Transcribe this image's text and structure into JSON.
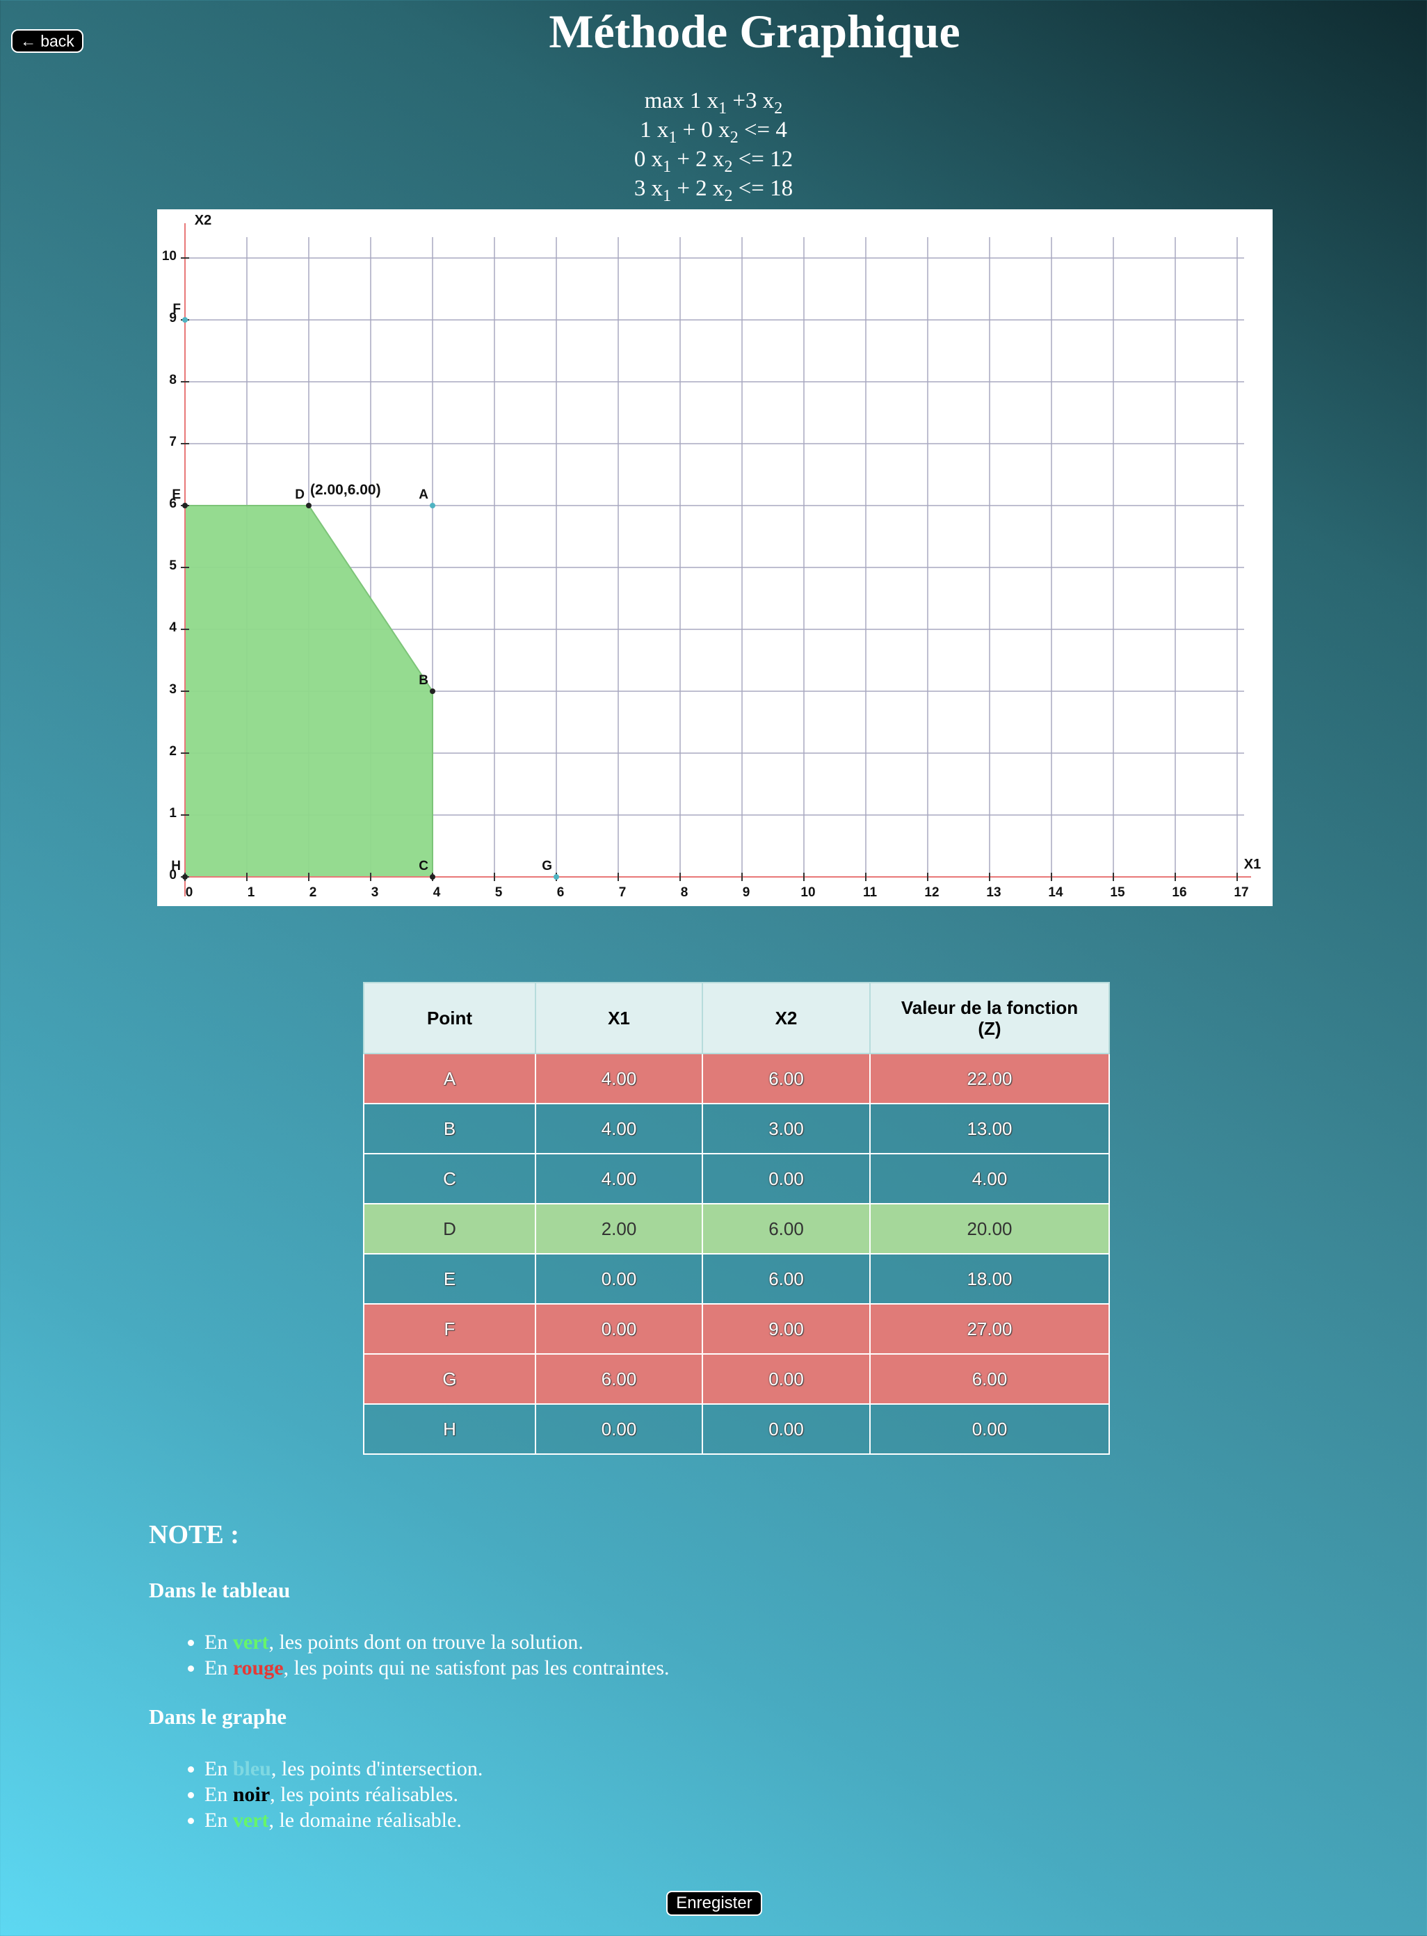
{
  "header": {
    "back_label": "back",
    "title": "Méthode Graphique"
  },
  "problem": {
    "objective": [
      "max 1 x",
      "1",
      " +3 x",
      "2",
      ""
    ],
    "constraints": [
      [
        "1 x",
        "1",
        " + 0 x",
        "2",
        " <= 4"
      ],
      [
        "0 x",
        "1",
        " + 2 x",
        "2",
        " <= 12"
      ],
      [
        "3 x",
        "1",
        " + 2 x",
        "2",
        " <= 18"
      ]
    ]
  },
  "colors": {
    "feasible_region": "#8fd98a",
    "intersection_point": "#4fb3c2",
    "axis": "#e87878",
    "grid": "#a8a8c0",
    "infeasible_row": "#e07b78",
    "optimal_row": "#a5d79a"
  },
  "chart_data": {
    "type": "scatter",
    "xlabel": "X1",
    "ylabel": "X2",
    "xlim": [
      0,
      17
    ],
    "ylim": [
      0,
      10
    ],
    "x_ticks": [
      "0",
      "1",
      "2",
      "3",
      "4",
      "5",
      "6",
      "7",
      "8",
      "9",
      "10",
      "11",
      "12",
      "13",
      "14",
      "15",
      "16",
      "17"
    ],
    "y_ticks": [
      "0",
      "1",
      "2",
      "3",
      "4",
      "5",
      "6",
      "7",
      "8",
      "9",
      "10"
    ],
    "grid": true,
    "feasible_region": [
      [
        0,
        0
      ],
      [
        4,
        0
      ],
      [
        4,
        3
      ],
      [
        2,
        6
      ],
      [
        0,
        6
      ]
    ],
    "points": [
      {
        "label": "A",
        "x": 4,
        "y": 6
      },
      {
        "label": "B",
        "x": 4,
        "y": 3
      },
      {
        "label": "C",
        "x": 4,
        "y": 0
      },
      {
        "label": "D",
        "x": 2,
        "y": 6
      },
      {
        "label": "E",
        "x": 0,
        "y": 6
      },
      {
        "label": "F",
        "x": 0,
        "y": 9
      },
      {
        "label": "G",
        "x": 6,
        "y": 0
      },
      {
        "label": "H",
        "x": 0,
        "y": 0
      }
    ],
    "annotation": {
      "text": "(2.00,6.00)",
      "x": 2,
      "y": 6
    }
  },
  "table": {
    "headers": [
      "Point",
      "X1",
      "X2",
      "Valeur de la fonction (Z)"
    ],
    "rows": [
      {
        "point": "A",
        "x1": "4.00",
        "x2": "6.00",
        "z": "22.00",
        "status": "infeasible"
      },
      {
        "point": "B",
        "x1": "4.00",
        "x2": "3.00",
        "z": "13.00",
        "status": "normal"
      },
      {
        "point": "C",
        "x1": "4.00",
        "x2": "0.00",
        "z": "4.00",
        "status": "normal"
      },
      {
        "point": "D",
        "x1": "2.00",
        "x2": "6.00",
        "z": "20.00",
        "status": "optimal"
      },
      {
        "point": "E",
        "x1": "0.00",
        "x2": "6.00",
        "z": "18.00",
        "status": "normal"
      },
      {
        "point": "F",
        "x1": "0.00",
        "x2": "9.00",
        "z": "27.00",
        "status": "infeasible"
      },
      {
        "point": "G",
        "x1": "6.00",
        "x2": "0.00",
        "z": "6.00",
        "status": "infeasible"
      },
      {
        "point": "H",
        "x1": "0.00",
        "x2": "0.00",
        "z": "0.00",
        "status": "normal"
      }
    ]
  },
  "note": {
    "title": "NOTE :",
    "table_section": {
      "heading": "Dans le tableau",
      "items": [
        {
          "prefix": "En ",
          "keyword": "vert",
          "suffix": ", les points dont on trouve la solution."
        },
        {
          "prefix": "En ",
          "keyword": "rouge",
          "suffix": ", les points qui ne satisfont pas les contraintes."
        }
      ]
    },
    "graph_section": {
      "heading": "Dans le graphe",
      "items": [
        {
          "prefix": "En ",
          "keyword": "bleu",
          "suffix": ", les points d'intersection."
        },
        {
          "prefix": "En ",
          "keyword": "noir",
          "suffix": ", les points réalisables."
        },
        {
          "prefix": "En ",
          "keyword": "vert",
          "suffix": ", le domaine réalisable."
        }
      ]
    }
  },
  "footer": {
    "save_label": "Enregister"
  }
}
